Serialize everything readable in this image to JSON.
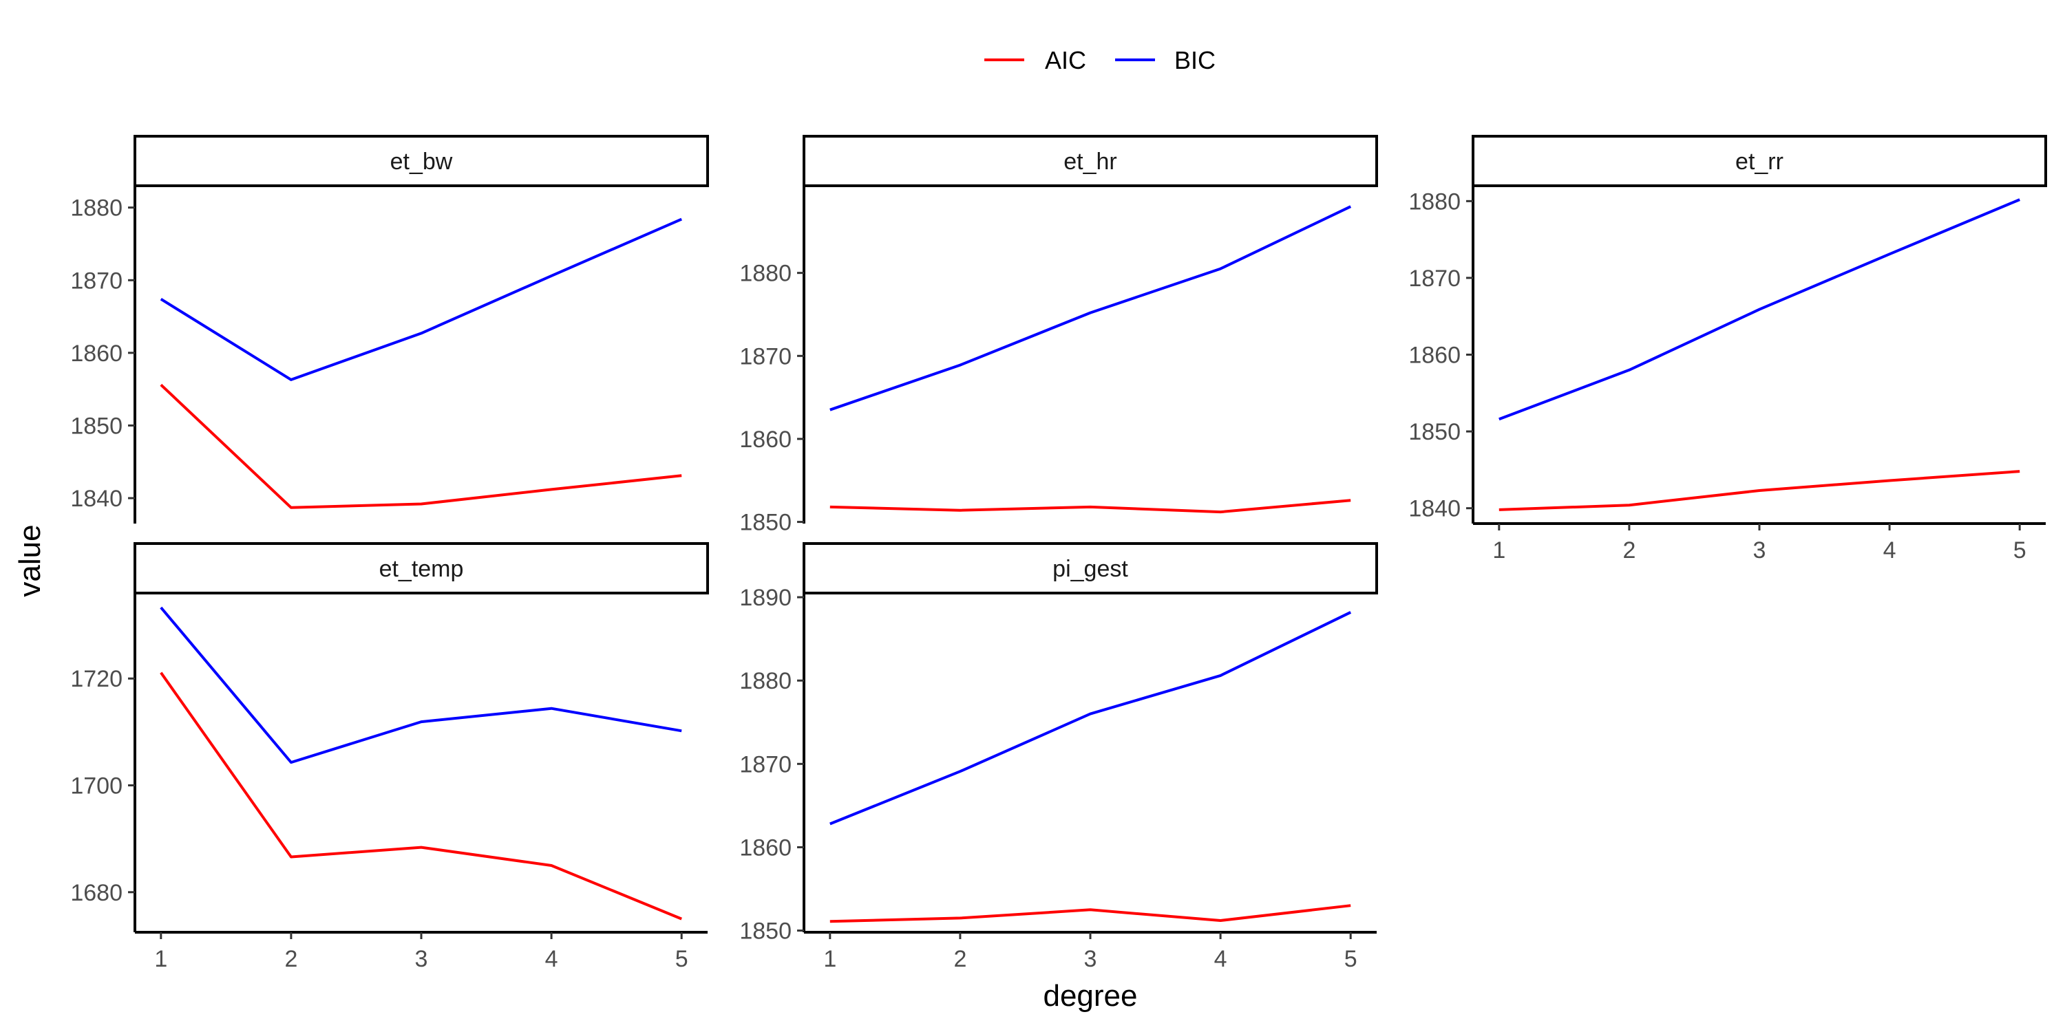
{
  "chart_data": {
    "type": "line",
    "layout": "facet-wrap",
    "xlabel": "degree",
    "ylabel": "value",
    "legend_position": "top",
    "grid": false,
    "series_colors": {
      "AIC": "#ff0000",
      "BIC": "#0000ff"
    },
    "legend": [
      "AIC",
      "BIC"
    ],
    "x": [
      1,
      2,
      3,
      4,
      5
    ],
    "panels": [
      {
        "name": "et_bw",
        "ylim": [
          1836.5,
          1883
        ],
        "yticks": [
          1840,
          1850,
          1860,
          1870,
          1880
        ],
        "series": [
          {
            "name": "AIC",
            "values": [
              1855.6,
              1838.7,
              1839.2,
              1841.2,
              1843.1
            ]
          },
          {
            "name": "BIC",
            "values": [
              1867.4,
              1856.3,
              1862.7,
              1870.6,
              1878.4
            ]
          }
        ]
      },
      {
        "name": "et_hr",
        "ylim": [
          1849.8,
          1890.5
        ],
        "yticks": [
          1850,
          1860,
          1870,
          1880
        ],
        "series": [
          {
            "name": "AIC",
            "values": [
              1851.8,
              1851.4,
              1851.8,
              1851.2,
              1852.6
            ]
          },
          {
            "name": "BIC",
            "values": [
              1863.5,
              1868.9,
              1875.2,
              1880.5,
              1888.0
            ]
          }
        ]
      },
      {
        "name": "et_rr",
        "ylim": [
          1838,
          1882
        ],
        "yticks": [
          1840,
          1850,
          1860,
          1870,
          1880
        ],
        "series": [
          {
            "name": "AIC",
            "values": [
              1839.8,
              1840.4,
              1842.3,
              1843.6,
              1844.8
            ]
          },
          {
            "name": "BIC",
            "values": [
              1851.6,
              1858.0,
              1865.9,
              1873.1,
              1880.2
            ]
          }
        ]
      },
      {
        "name": "et_temp",
        "ylim": [
          1672.5,
          1736
        ],
        "yticks": [
          1680,
          1700,
          1720
        ],
        "series": [
          {
            "name": "AIC",
            "values": [
              1721.1,
              1686.6,
              1688.4,
              1685.0,
              1675.0
            ]
          },
          {
            "name": "BIC",
            "values": [
              1733.3,
              1704.3,
              1711.9,
              1714.4,
              1710.2
            ]
          }
        ]
      },
      {
        "name": "pi_gest",
        "ylim": [
          1849.8,
          1890.5
        ],
        "yticks": [
          1850,
          1860,
          1870,
          1880,
          1890
        ],
        "series": [
          {
            "name": "AIC",
            "values": [
              1851.1,
              1851.5,
              1852.5,
              1851.2,
              1853.0
            ]
          },
          {
            "name": "BIC",
            "values": [
              1862.8,
              1869.1,
              1876.0,
              1880.6,
              1888.2
            ]
          }
        ]
      }
    ]
  }
}
